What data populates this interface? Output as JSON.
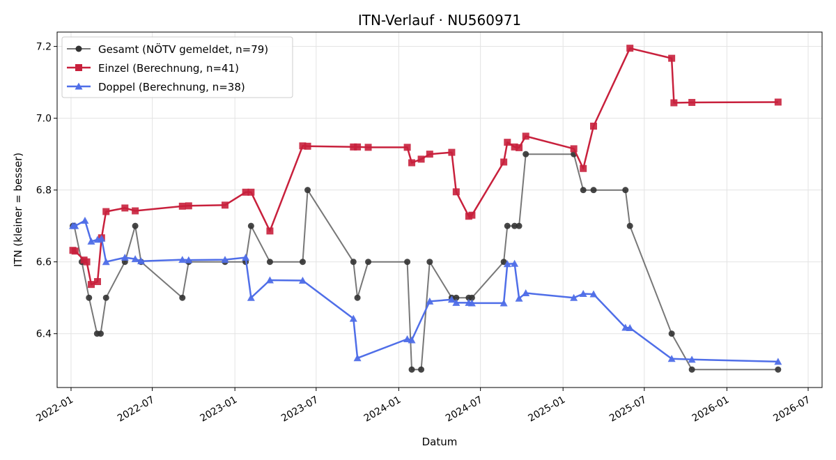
{
  "chart_data": {
    "type": "line",
    "title": "ITN-Verlauf · NU560971",
    "xlabel": "Datum",
    "ylabel": "ITN  (kleiner = besser)",
    "x_tick_labels": [
      "2022-01",
      "2022-07",
      "2023-01",
      "2023-07",
      "2024-01",
      "2024-07",
      "2025-01",
      "2025-07",
      "2026-01",
      "2026-07"
    ],
    "y_tick_labels": [
      "6.4",
      "6.6",
      "6.8",
      "7.0",
      "7.2"
    ],
    "ylim": [
      6.25,
      7.24
    ],
    "xlim": [
      "2021-12-01",
      "2026-08-01"
    ],
    "grid": true,
    "legend_position": "top-left",
    "series": [
      {
        "name": "Gesamt (NÖTV gemeldet, n=79)",
        "color": "#555555",
        "marker": "circle",
        "points": [
          [
            "2022-01-05",
            6.7
          ],
          [
            "2022-01-08",
            6.7
          ],
          [
            "2022-01-25",
            6.6
          ],
          [
            "2022-02-10",
            6.5
          ],
          [
            "2022-02-28",
            6.4
          ],
          [
            "2022-03-08",
            6.4
          ],
          [
            "2022-03-20",
            6.5
          ],
          [
            "2022-05-01",
            6.6
          ],
          [
            "2022-05-24",
            6.7
          ],
          [
            "2022-06-06",
            6.6
          ],
          [
            "2022-09-06",
            6.5
          ],
          [
            "2022-09-20",
            6.6
          ],
          [
            "2022-12-10",
            6.6
          ],
          [
            "2023-01-25",
            6.6
          ],
          [
            "2023-02-06",
            6.7
          ],
          [
            "2023-03-20",
            6.6
          ],
          [
            "2023-06-01",
            6.6
          ],
          [
            "2023-06-12",
            6.8
          ],
          [
            "2023-09-22",
            6.6
          ],
          [
            "2023-10-01",
            6.5
          ],
          [
            "2023-10-25",
            6.6
          ],
          [
            "2024-01-20",
            6.6
          ],
          [
            "2024-01-30",
            6.3
          ],
          [
            "2024-02-20",
            6.3
          ],
          [
            "2024-03-10",
            6.6
          ],
          [
            "2024-04-28",
            6.5
          ],
          [
            "2024-05-08",
            6.5
          ],
          [
            "2024-06-05",
            6.5
          ],
          [
            "2024-06-12",
            6.5
          ],
          [
            "2024-08-22",
            6.6
          ],
          [
            "2024-08-30",
            6.7
          ],
          [
            "2024-09-15",
            6.7
          ],
          [
            "2024-09-25",
            6.7
          ],
          [
            "2024-10-10",
            6.9
          ],
          [
            "2025-01-25",
            6.9
          ],
          [
            "2025-02-15",
            6.8
          ],
          [
            "2025-03-10",
            6.8
          ],
          [
            "2025-05-20",
            6.8
          ],
          [
            "2025-05-30",
            6.7
          ],
          [
            "2025-08-31",
            6.4
          ],
          [
            "2025-10-15",
            6.3
          ],
          [
            "2026-04-25",
            6.3
          ]
        ]
      },
      {
        "name": "Einzel (Berechnung, n=41)",
        "color": "#c8203c",
        "marker": "square",
        "points": [
          [
            "2022-01-05",
            6.632
          ],
          [
            "2022-01-10",
            6.63
          ],
          [
            "2022-01-30",
            6.605
          ],
          [
            "2022-02-05",
            6.6
          ],
          [
            "2022-02-15",
            6.537
          ],
          [
            "2022-03-01",
            6.545
          ],
          [
            "2022-03-10",
            6.667
          ],
          [
            "2022-03-20",
            6.74
          ],
          [
            "2022-05-01",
            6.75
          ],
          [
            "2022-05-24",
            6.742
          ],
          [
            "2022-09-06",
            6.755
          ],
          [
            "2022-09-20",
            6.756
          ],
          [
            "2022-12-10",
            6.758
          ],
          [
            "2023-01-25",
            6.794
          ],
          [
            "2023-02-06",
            6.794
          ],
          [
            "2023-03-20",
            6.686
          ],
          [
            "2023-06-01",
            6.923
          ],
          [
            "2023-06-12",
            6.922
          ],
          [
            "2023-09-22",
            6.92
          ],
          [
            "2023-10-01",
            6.92
          ],
          [
            "2023-10-25",
            6.919
          ],
          [
            "2024-01-20",
            6.919
          ],
          [
            "2024-01-30",
            6.876
          ],
          [
            "2024-02-20",
            6.886
          ],
          [
            "2024-03-10",
            6.9
          ],
          [
            "2024-04-28",
            6.905
          ],
          [
            "2024-05-08",
            6.795
          ],
          [
            "2024-06-05",
            6.727
          ],
          [
            "2024-06-12",
            6.73
          ],
          [
            "2024-08-22",
            6.878
          ],
          [
            "2024-08-30",
            6.933
          ],
          [
            "2024-09-15",
            6.92
          ],
          [
            "2024-09-25",
            6.918
          ],
          [
            "2024-10-10",
            6.95
          ],
          [
            "2025-01-25",
            6.915
          ],
          [
            "2025-02-15",
            6.86
          ],
          [
            "2025-03-10",
            6.978
          ],
          [
            "2025-05-30",
            7.195
          ],
          [
            "2025-08-31",
            7.167
          ],
          [
            "2025-09-05",
            7.043
          ],
          [
            "2025-10-15",
            7.044
          ],
          [
            "2026-04-25",
            7.045
          ]
        ]
      },
      {
        "name": "Doppel (Berechnung, n=38)",
        "color": "#4f6ee8",
        "marker": "triangle",
        "points": [
          [
            "2022-01-05",
            6.7
          ],
          [
            "2022-01-10",
            6.7
          ],
          [
            "2022-02-01",
            6.715
          ],
          [
            "2022-02-15",
            6.657
          ],
          [
            "2022-03-01",
            6.662
          ],
          [
            "2022-03-10",
            6.665
          ],
          [
            "2022-03-20",
            6.6
          ],
          [
            "2022-05-01",
            6.612
          ],
          [
            "2022-05-24",
            6.608
          ],
          [
            "2022-06-06",
            6.602
          ],
          [
            "2022-09-06",
            6.606
          ],
          [
            "2022-09-20",
            6.605
          ],
          [
            "2022-12-10",
            6.606
          ],
          [
            "2023-01-25",
            6.612
          ],
          [
            "2023-02-06",
            6.5
          ],
          [
            "2023-03-20",
            6.549
          ],
          [
            "2023-06-01",
            6.548
          ],
          [
            "2023-09-22",
            6.442
          ],
          [
            "2023-10-01",
            6.332
          ],
          [
            "2024-01-20",
            6.385
          ],
          [
            "2024-01-30",
            6.382
          ],
          [
            "2024-03-10",
            6.49
          ],
          [
            "2024-04-28",
            6.495
          ],
          [
            "2024-05-08",
            6.486
          ],
          [
            "2024-06-05",
            6.486
          ],
          [
            "2024-06-12",
            6.485
          ],
          [
            "2024-08-22",
            6.485
          ],
          [
            "2024-08-30",
            6.594
          ],
          [
            "2024-09-15",
            6.595
          ],
          [
            "2024-09-25",
            6.498
          ],
          [
            "2024-10-10",
            6.513
          ],
          [
            "2025-01-25",
            6.5
          ],
          [
            "2025-02-15",
            6.511
          ],
          [
            "2025-03-10",
            6.51
          ],
          [
            "2025-05-20",
            6.417
          ],
          [
            "2025-05-30",
            6.416
          ],
          [
            "2025-08-31",
            6.33
          ],
          [
            "2025-10-15",
            6.328
          ],
          [
            "2026-04-25",
            6.322
          ]
        ]
      }
    ]
  }
}
